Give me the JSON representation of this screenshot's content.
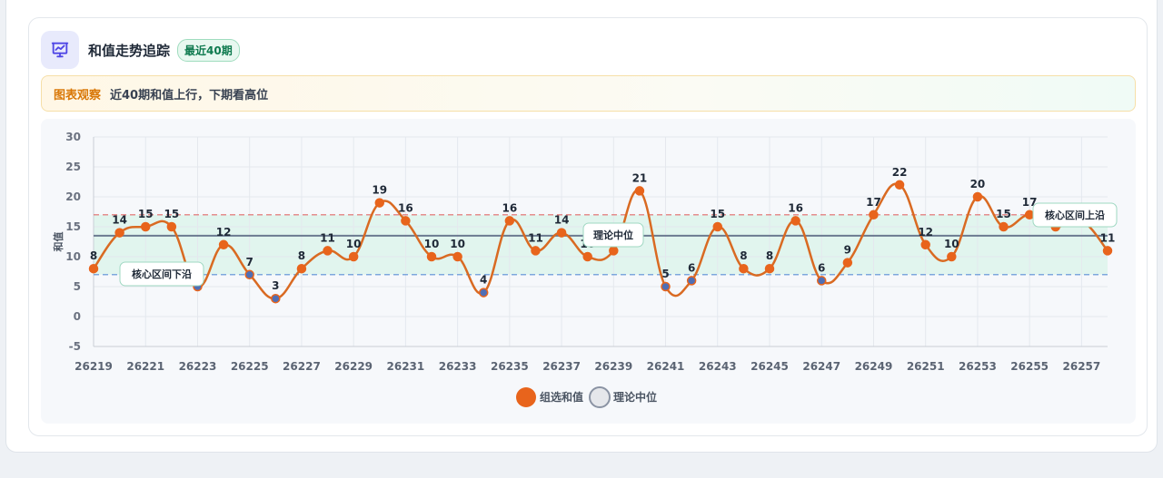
{
  "header": {
    "title": "和值走势追踪",
    "badge": "最近40期"
  },
  "observation": {
    "label": "图表观察",
    "text": "近40期和值上行，下期看高位"
  },
  "colors": {
    "series": "#e8641c",
    "line": "#d96a22",
    "median": "#6b7a90",
    "band": "#d9f3e8",
    "upper": "#e06a6a",
    "lower": "#5b8fd6"
  },
  "chart_data": {
    "type": "line",
    "ylabel": "和值",
    "ylim": [
      -5,
      30
    ],
    "yticks": [
      -5,
      0,
      5,
      10,
      15,
      20,
      25,
      30
    ],
    "x": [
      26219,
      26220,
      26221,
      26222,
      26223,
      26224,
      26225,
      26226,
      26227,
      26228,
      26229,
      26230,
      26231,
      26232,
      26233,
      26234,
      26235,
      26236,
      26237,
      26238,
      26239,
      26240,
      26241,
      26242,
      26243,
      26244,
      26245,
      26246,
      26247,
      26248,
      26249,
      26250,
      26251,
      26252,
      26253,
      26254,
      26255,
      26256,
      26257,
      26258
    ],
    "xticks": [
      "26219",
      "26221",
      "26223",
      "26225",
      "26227",
      "26229",
      "26231",
      "26233",
      "26235",
      "26237",
      "26239",
      "26241",
      "26243",
      "26245",
      "26247",
      "26249",
      "26251",
      "26253",
      "26255",
      "26257"
    ],
    "series": [
      {
        "name": "组选和值",
        "values": [
          8,
          14,
          15,
          15,
          5,
          12,
          7,
          3,
          8,
          11,
          10,
          19,
          16,
          10,
          10,
          4,
          16,
          11,
          14,
          10,
          11,
          21,
          5,
          6,
          15,
          8,
          8,
          16,
          6,
          9,
          17,
          22,
          12,
          10,
          20,
          15,
          17,
          15,
          16,
          11
        ]
      }
    ],
    "reference_lines": [
      {
        "label": "理论中位",
        "value": 13.5
      },
      {
        "label": "核心区间上沿",
        "value": 17
      },
      {
        "label": "核心区间下沿",
        "value": 7
      }
    ],
    "legend": [
      "组选和值",
      "理论中位"
    ],
    "legend_position": "bottom",
    "grid": true
  }
}
